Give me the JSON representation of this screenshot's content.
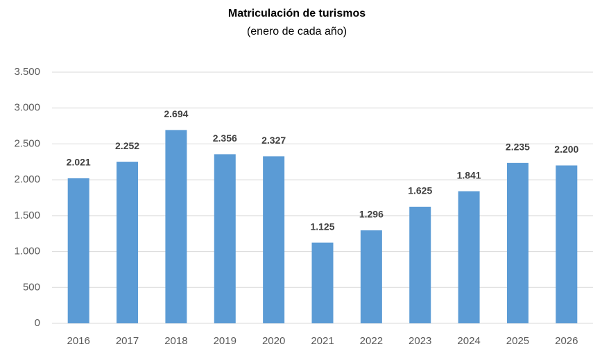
{
  "chart_data": {
    "type": "bar",
    "title": "Matriculación de turismos",
    "subtitle": "(enero de cada año)",
    "categories": [
      "2016",
      "2017",
      "2018",
      "2019",
      "2020",
      "2021",
      "2022",
      "2023",
      "2024",
      "2025",
      "2026"
    ],
    "values": [
      2021,
      2252,
      2694,
      2356,
      2327,
      1125,
      1296,
      1625,
      1841,
      2235,
      2200
    ],
    "value_labels": [
      "2.021",
      "2.252",
      "2.694",
      "2.356",
      "2.327",
      "1.125",
      "1.296",
      "1.625",
      "1.841",
      "2.235",
      "2.200"
    ],
    "color": "#5b9bd5",
    "ylim": [
      0,
      3500
    ],
    "yticks": [
      0,
      500,
      {
        "value": 1000,
        "label": "1.000"
      },
      {
        "value": 1500,
        "label": "1.500"
      },
      {
        "value": 2000,
        "label": "2.000"
      },
      {
        "value": 2500,
        "label": "2.500"
      },
      {
        "value": 3000,
        "label": "3.000"
      },
      {
        "value": 3500,
        "label": "3.500"
      }
    ],
    "grid": true
  }
}
